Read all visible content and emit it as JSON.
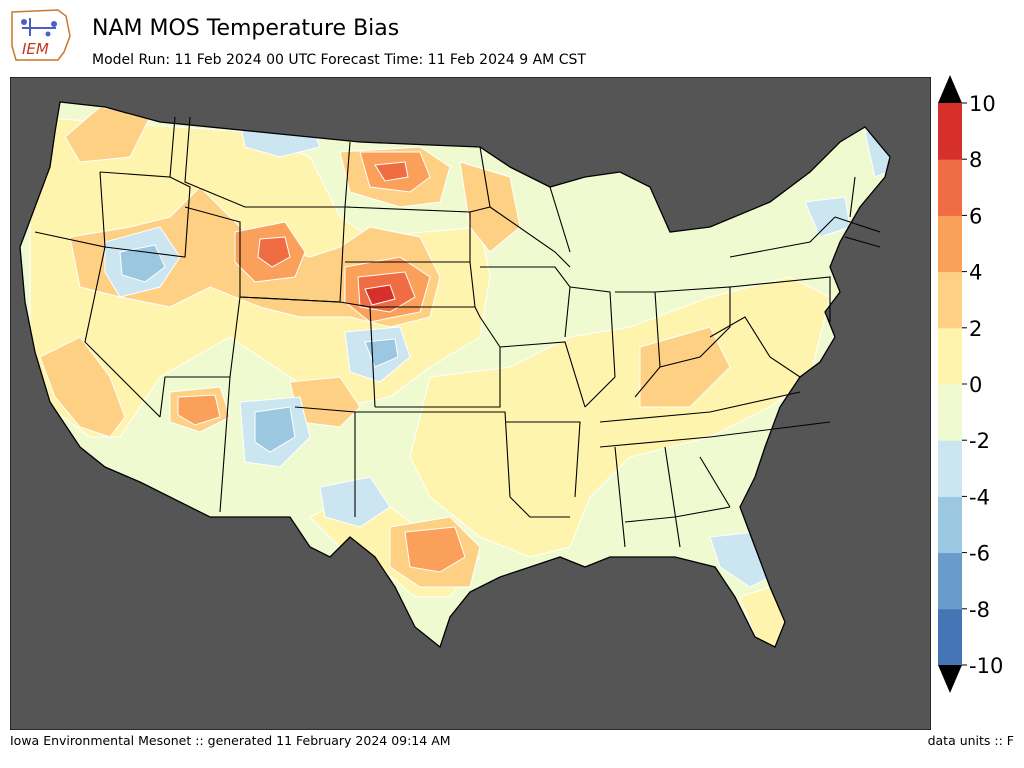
{
  "header": {
    "title": "NAM MOS Temperature Bias",
    "subtitle": "Model Run: 11 Feb 2024 00 UTC Forecast Time: 11 Feb 2024 9 AM CST"
  },
  "logo": {
    "text": "IEM"
  },
  "footer": {
    "left": "Iowa Environmental Mesonet :: generated 11 February 2024 09:14 AM",
    "right": "data units :: F"
  },
  "colorbar": {
    "levels": [
      -10,
      -8,
      -6,
      -4,
      -2,
      0,
      2,
      4,
      6,
      8,
      10
    ],
    "tick_labels": [
      "10",
      "8",
      "6",
      "4",
      "2",
      "0",
      "-2",
      "-4",
      "-6",
      "-8",
      "-10"
    ],
    "colors": [
      "#4575b4",
      "#6a9ccb",
      "#9bc8e0",
      "#cbe6f0",
      "#effad0",
      "#fff4ae",
      "#fed084",
      "#fba05b",
      "#f06d43",
      "#d7302a"
    ],
    "over_color": "#000000",
    "under_color": "#000000",
    "extend": "both"
  },
  "map": {
    "ocean_color": "#555555",
    "land_background": "#effad0",
    "border_color": "#000000",
    "projection": "CONUS Lambert"
  }
}
